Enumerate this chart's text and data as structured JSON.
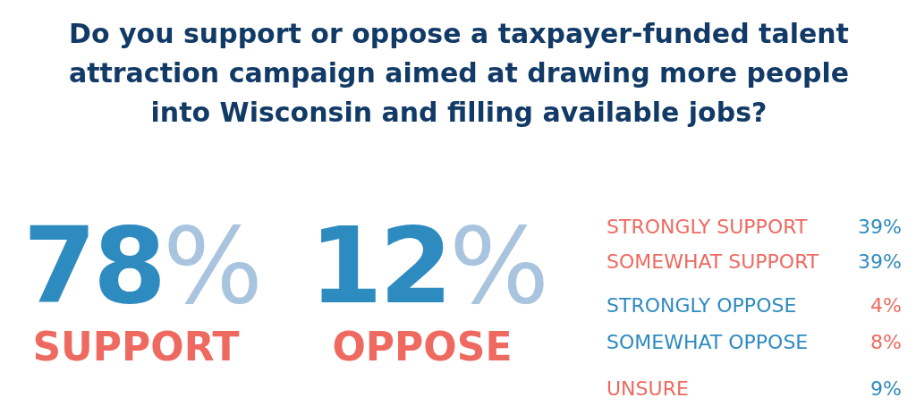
{
  "chart_data": [
    {
      "type": "other",
      "title": "Do you support or oppose a taxpayer-funded talent attraction campaign aimed at drawing more people into Wisconsin and filling available jobs?",
      "categories": [
        "SUPPORT",
        "OPPOSE"
      ],
      "values": [
        78,
        12
      ],
      "value_labels": [
        "78%",
        "12%"
      ],
      "colors": [
        "#2e8bc0",
        "#2e8bc0"
      ]
    },
    {
      "type": "other",
      "categories": [
        "STRONGLY SUPPORT",
        "SOMEWHAT SUPPORT",
        "STRONGLY OPPOSE",
        "SOMEWHAT OPPOSE",
        "UNSURE"
      ],
      "values": [
        39,
        39,
        4,
        8,
        9
      ],
      "value_labels": [
        "39%",
        "39%",
        "4%",
        "8%",
        "9%"
      ],
      "colors": [
        "#ee6a60",
        "#ee6a60",
        "#2e8bc0",
        "#2e8bc0",
        "#ee6a60"
      ]
    }
  ]
}
